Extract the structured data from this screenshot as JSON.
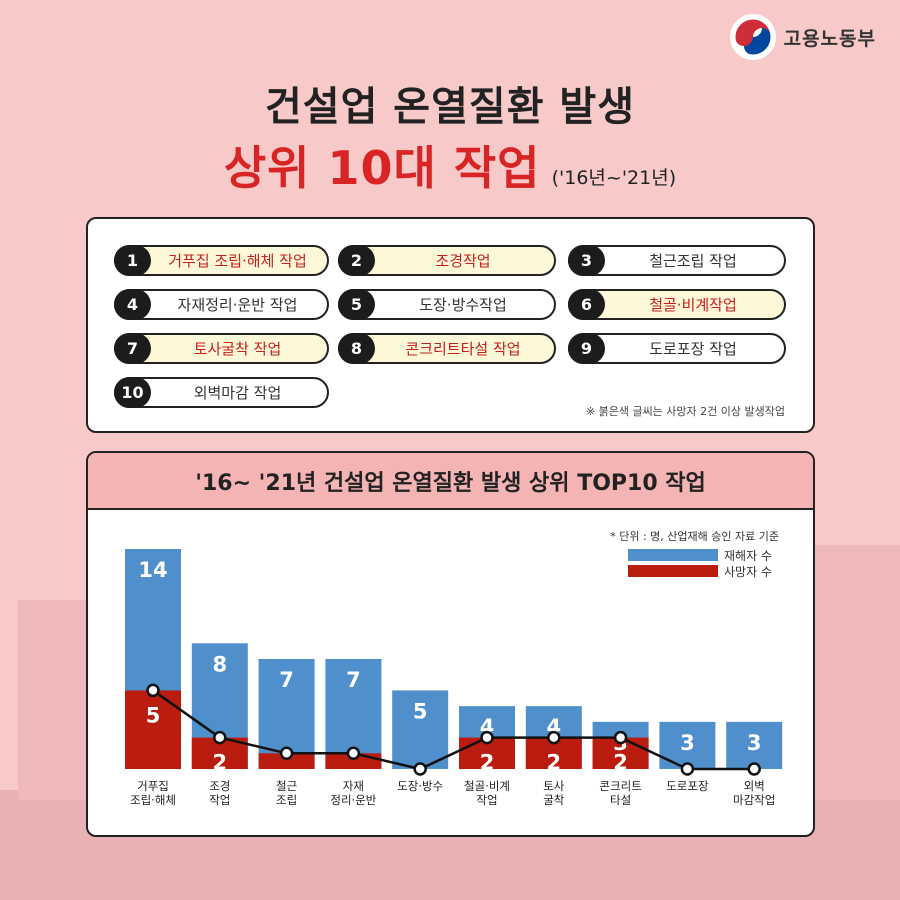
{
  "brand": {
    "name": "고용노동부",
    "colors": {
      "red": "#cd2e3a",
      "blue": "#0047a0"
    }
  },
  "title": {
    "line1": "건설업 온열질환 발생",
    "line2": "상위 10대 작업",
    "period": "('16년~'21년)"
  },
  "items": [
    {
      "num": "1",
      "label": "거푸집 조립·해체 작업",
      "red": true,
      "highlight": true
    },
    {
      "num": "2",
      "label": "조경작업",
      "red": true,
      "highlight": true
    },
    {
      "num": "3",
      "label": "철근조립 작업",
      "red": false,
      "highlight": false
    },
    {
      "num": "4",
      "label": "자재정리·운반 작업",
      "red": false,
      "highlight": false
    },
    {
      "num": "5",
      "label": "도장·방수작업",
      "red": false,
      "highlight": false
    },
    {
      "num": "6",
      "label": "철골·비계작업",
      "red": true,
      "highlight": true
    },
    {
      "num": "7",
      "label": "토사굴착 작업",
      "red": true,
      "highlight": true
    },
    {
      "num": "8",
      "label": "콘크리트타설 작업",
      "red": true,
      "highlight": true
    },
    {
      "num": "9",
      "label": "도로포장 작업",
      "red": false,
      "highlight": false
    },
    {
      "num": "10",
      "label": "외벽마감 작업",
      "red": false,
      "highlight": false
    }
  ],
  "note": "※ 붉은색 글씨는 사망자 2건 이상 발생작업",
  "chart_data": {
    "type": "bar",
    "title": "'16~ '21년 건설업 온열질환 발생 상위 TOP10 작업",
    "unit_note": "* 단위 : 명, 산업재해 승인 자료 기준",
    "categories": [
      [
        "거푸집",
        "조립·해체"
      ],
      [
        "조경",
        "작업"
      ],
      [
        "철근",
        "조립"
      ],
      [
        "자재",
        "정리·운반"
      ],
      [
        "도장·방수"
      ],
      [
        "철골·비계",
        "작업"
      ],
      [
        "토사",
        "굴착"
      ],
      [
        "콘크리트",
        "타설"
      ],
      [
        "도로포장"
      ],
      [
        "외벽",
        "마감작업"
      ]
    ],
    "series": [
      {
        "name": "재해자 수",
        "color": "#4f8fcc",
        "values": [
          14,
          8,
          7,
          7,
          5,
          4,
          4,
          3,
          3,
          3
        ]
      },
      {
        "name": "사망자 수",
        "color": "#bb1c10",
        "values": [
          5,
          2,
          1,
          1,
          0,
          2,
          2,
          2,
          0,
          0
        ]
      }
    ],
    "ylim": [
      0,
      14
    ],
    "legend": "top-right",
    "grid": false
  }
}
